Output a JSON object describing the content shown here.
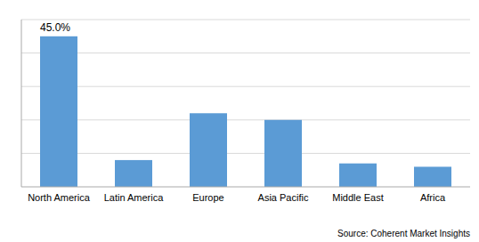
{
  "chart_data": {
    "type": "bar",
    "categories": [
      "North America",
      "Latin America",
      "Europe",
      "Asia Pacific",
      "Middle East",
      "Africa"
    ],
    "values": [
      45.0,
      8.0,
      22.0,
      20.0,
      7.0,
      6.0
    ],
    "color": "#5b9bd5",
    "ylim": [
      0,
      50
    ],
    "yticks": [
      10,
      20,
      30,
      40,
      50
    ],
    "grid": true,
    "tick_labels": "x",
    "annotation": "45.0%",
    "source": "Source: Coherent Market Insights"
  }
}
